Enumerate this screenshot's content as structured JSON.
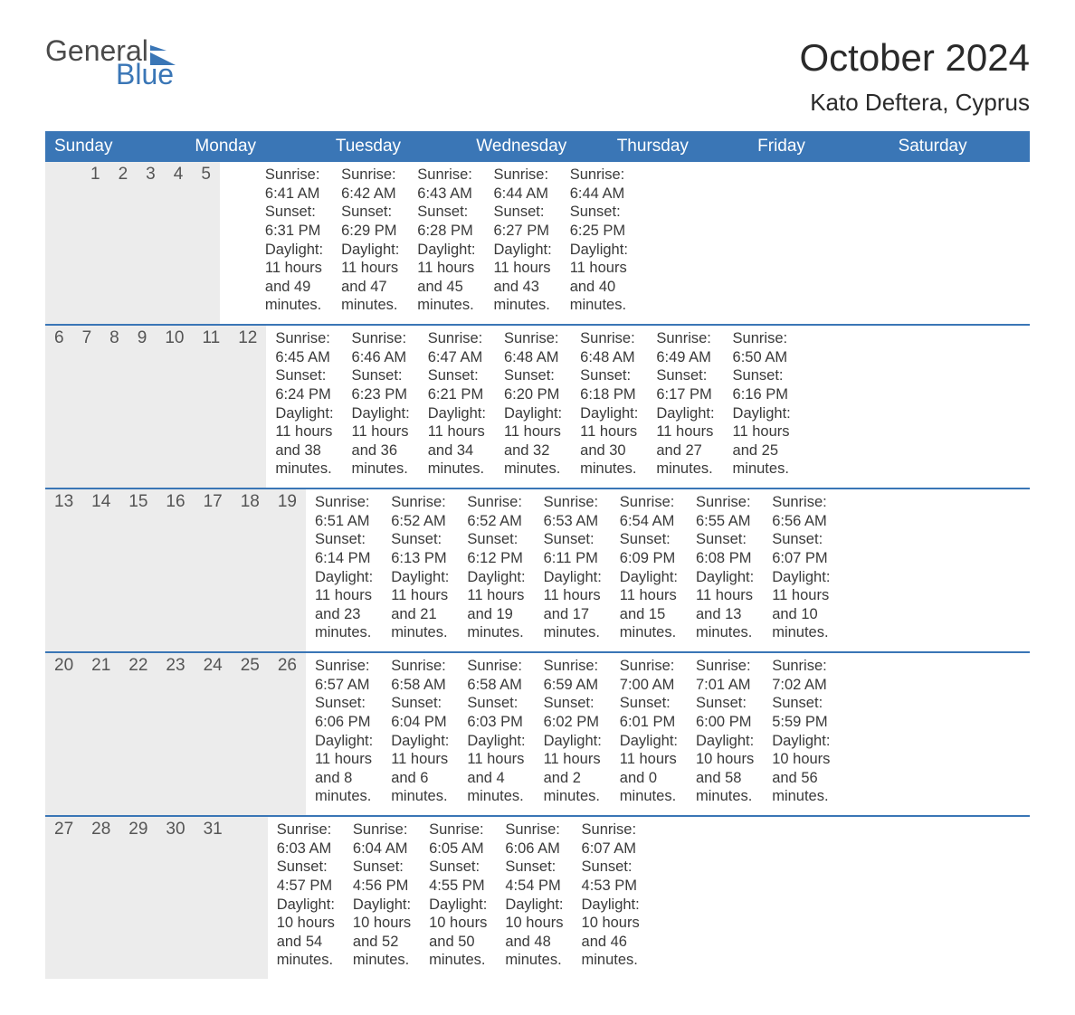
{
  "brand": {
    "word1": "General",
    "word2": "Blue",
    "accent_color": "#3a76b6"
  },
  "title": "October 2024",
  "location": "Kato Deftera, Cyprus",
  "day_headers": [
    "Sunday",
    "Monday",
    "Tuesday",
    "Wednesday",
    "Thursday",
    "Friday",
    "Saturday"
  ],
  "colors": {
    "header_bg": "#3a76b6",
    "header_text": "#ffffff",
    "daynum_bg": "#ececec",
    "week_border": "#3a76b6",
    "text": "#333333",
    "background": "#ffffff"
  },
  "typography": {
    "title_fontsize": 42,
    "location_fontsize": 26,
    "dow_fontsize": 19,
    "daynum_fontsize": 19,
    "body_fontsize": 16.5
  },
  "weeks": [
    [
      {
        "num": "",
        "sunrise": "",
        "sunset": "",
        "daylight": ""
      },
      {
        "num": "",
        "sunrise": "",
        "sunset": "",
        "daylight": ""
      },
      {
        "num": "1",
        "sunrise": "Sunrise: 6:41 AM",
        "sunset": "Sunset: 6:31 PM",
        "daylight": "Daylight: 11 hours and 49 minutes."
      },
      {
        "num": "2",
        "sunrise": "Sunrise: 6:42 AM",
        "sunset": "Sunset: 6:29 PM",
        "daylight": "Daylight: 11 hours and 47 minutes."
      },
      {
        "num": "3",
        "sunrise": "Sunrise: 6:43 AM",
        "sunset": "Sunset: 6:28 PM",
        "daylight": "Daylight: 11 hours and 45 minutes."
      },
      {
        "num": "4",
        "sunrise": "Sunrise: 6:44 AM",
        "sunset": "Sunset: 6:27 PM",
        "daylight": "Daylight: 11 hours and 43 minutes."
      },
      {
        "num": "5",
        "sunrise": "Sunrise: 6:44 AM",
        "sunset": "Sunset: 6:25 PM",
        "daylight": "Daylight: 11 hours and 40 minutes."
      }
    ],
    [
      {
        "num": "6",
        "sunrise": "Sunrise: 6:45 AM",
        "sunset": "Sunset: 6:24 PM",
        "daylight": "Daylight: 11 hours and 38 minutes."
      },
      {
        "num": "7",
        "sunrise": "Sunrise: 6:46 AM",
        "sunset": "Sunset: 6:23 PM",
        "daylight": "Daylight: 11 hours and 36 minutes."
      },
      {
        "num": "8",
        "sunrise": "Sunrise: 6:47 AM",
        "sunset": "Sunset: 6:21 PM",
        "daylight": "Daylight: 11 hours and 34 minutes."
      },
      {
        "num": "9",
        "sunrise": "Sunrise: 6:48 AM",
        "sunset": "Sunset: 6:20 PM",
        "daylight": "Daylight: 11 hours and 32 minutes."
      },
      {
        "num": "10",
        "sunrise": "Sunrise: 6:48 AM",
        "sunset": "Sunset: 6:18 PM",
        "daylight": "Daylight: 11 hours and 30 minutes."
      },
      {
        "num": "11",
        "sunrise": "Sunrise: 6:49 AM",
        "sunset": "Sunset: 6:17 PM",
        "daylight": "Daylight: 11 hours and 27 minutes."
      },
      {
        "num": "12",
        "sunrise": "Sunrise: 6:50 AM",
        "sunset": "Sunset: 6:16 PM",
        "daylight": "Daylight: 11 hours and 25 minutes."
      }
    ],
    [
      {
        "num": "13",
        "sunrise": "Sunrise: 6:51 AM",
        "sunset": "Sunset: 6:14 PM",
        "daylight": "Daylight: 11 hours and 23 minutes."
      },
      {
        "num": "14",
        "sunrise": "Sunrise: 6:52 AM",
        "sunset": "Sunset: 6:13 PM",
        "daylight": "Daylight: 11 hours and 21 minutes."
      },
      {
        "num": "15",
        "sunrise": "Sunrise: 6:52 AM",
        "sunset": "Sunset: 6:12 PM",
        "daylight": "Daylight: 11 hours and 19 minutes."
      },
      {
        "num": "16",
        "sunrise": "Sunrise: 6:53 AM",
        "sunset": "Sunset: 6:11 PM",
        "daylight": "Daylight: 11 hours and 17 minutes."
      },
      {
        "num": "17",
        "sunrise": "Sunrise: 6:54 AM",
        "sunset": "Sunset: 6:09 PM",
        "daylight": "Daylight: 11 hours and 15 minutes."
      },
      {
        "num": "18",
        "sunrise": "Sunrise: 6:55 AM",
        "sunset": "Sunset: 6:08 PM",
        "daylight": "Daylight: 11 hours and 13 minutes."
      },
      {
        "num": "19",
        "sunrise": "Sunrise: 6:56 AM",
        "sunset": "Sunset: 6:07 PM",
        "daylight": "Daylight: 11 hours and 10 minutes."
      }
    ],
    [
      {
        "num": "20",
        "sunrise": "Sunrise: 6:57 AM",
        "sunset": "Sunset: 6:06 PM",
        "daylight": "Daylight: 11 hours and 8 minutes."
      },
      {
        "num": "21",
        "sunrise": "Sunrise: 6:58 AM",
        "sunset": "Sunset: 6:04 PM",
        "daylight": "Daylight: 11 hours and 6 minutes."
      },
      {
        "num": "22",
        "sunrise": "Sunrise: 6:58 AM",
        "sunset": "Sunset: 6:03 PM",
        "daylight": "Daylight: 11 hours and 4 minutes."
      },
      {
        "num": "23",
        "sunrise": "Sunrise: 6:59 AM",
        "sunset": "Sunset: 6:02 PM",
        "daylight": "Daylight: 11 hours and 2 minutes."
      },
      {
        "num": "24",
        "sunrise": "Sunrise: 7:00 AM",
        "sunset": "Sunset: 6:01 PM",
        "daylight": "Daylight: 11 hours and 0 minutes."
      },
      {
        "num": "25",
        "sunrise": "Sunrise: 7:01 AM",
        "sunset": "Sunset: 6:00 PM",
        "daylight": "Daylight: 10 hours and 58 minutes."
      },
      {
        "num": "26",
        "sunrise": "Sunrise: 7:02 AM",
        "sunset": "Sunset: 5:59 PM",
        "daylight": "Daylight: 10 hours and 56 minutes."
      }
    ],
    [
      {
        "num": "27",
        "sunrise": "Sunrise: 6:03 AM",
        "sunset": "Sunset: 4:57 PM",
        "daylight": "Daylight: 10 hours and 54 minutes."
      },
      {
        "num": "28",
        "sunrise": "Sunrise: 6:04 AM",
        "sunset": "Sunset: 4:56 PM",
        "daylight": "Daylight: 10 hours and 52 minutes."
      },
      {
        "num": "29",
        "sunrise": "Sunrise: 6:05 AM",
        "sunset": "Sunset: 4:55 PM",
        "daylight": "Daylight: 10 hours and 50 minutes."
      },
      {
        "num": "30",
        "sunrise": "Sunrise: 6:06 AM",
        "sunset": "Sunset: 4:54 PM",
        "daylight": "Daylight: 10 hours and 48 minutes."
      },
      {
        "num": "31",
        "sunrise": "Sunrise: 6:07 AM",
        "sunset": "Sunset: 4:53 PM",
        "daylight": "Daylight: 10 hours and 46 minutes."
      },
      {
        "num": "",
        "sunrise": "",
        "sunset": "",
        "daylight": ""
      },
      {
        "num": "",
        "sunrise": "",
        "sunset": "",
        "daylight": ""
      }
    ]
  ]
}
